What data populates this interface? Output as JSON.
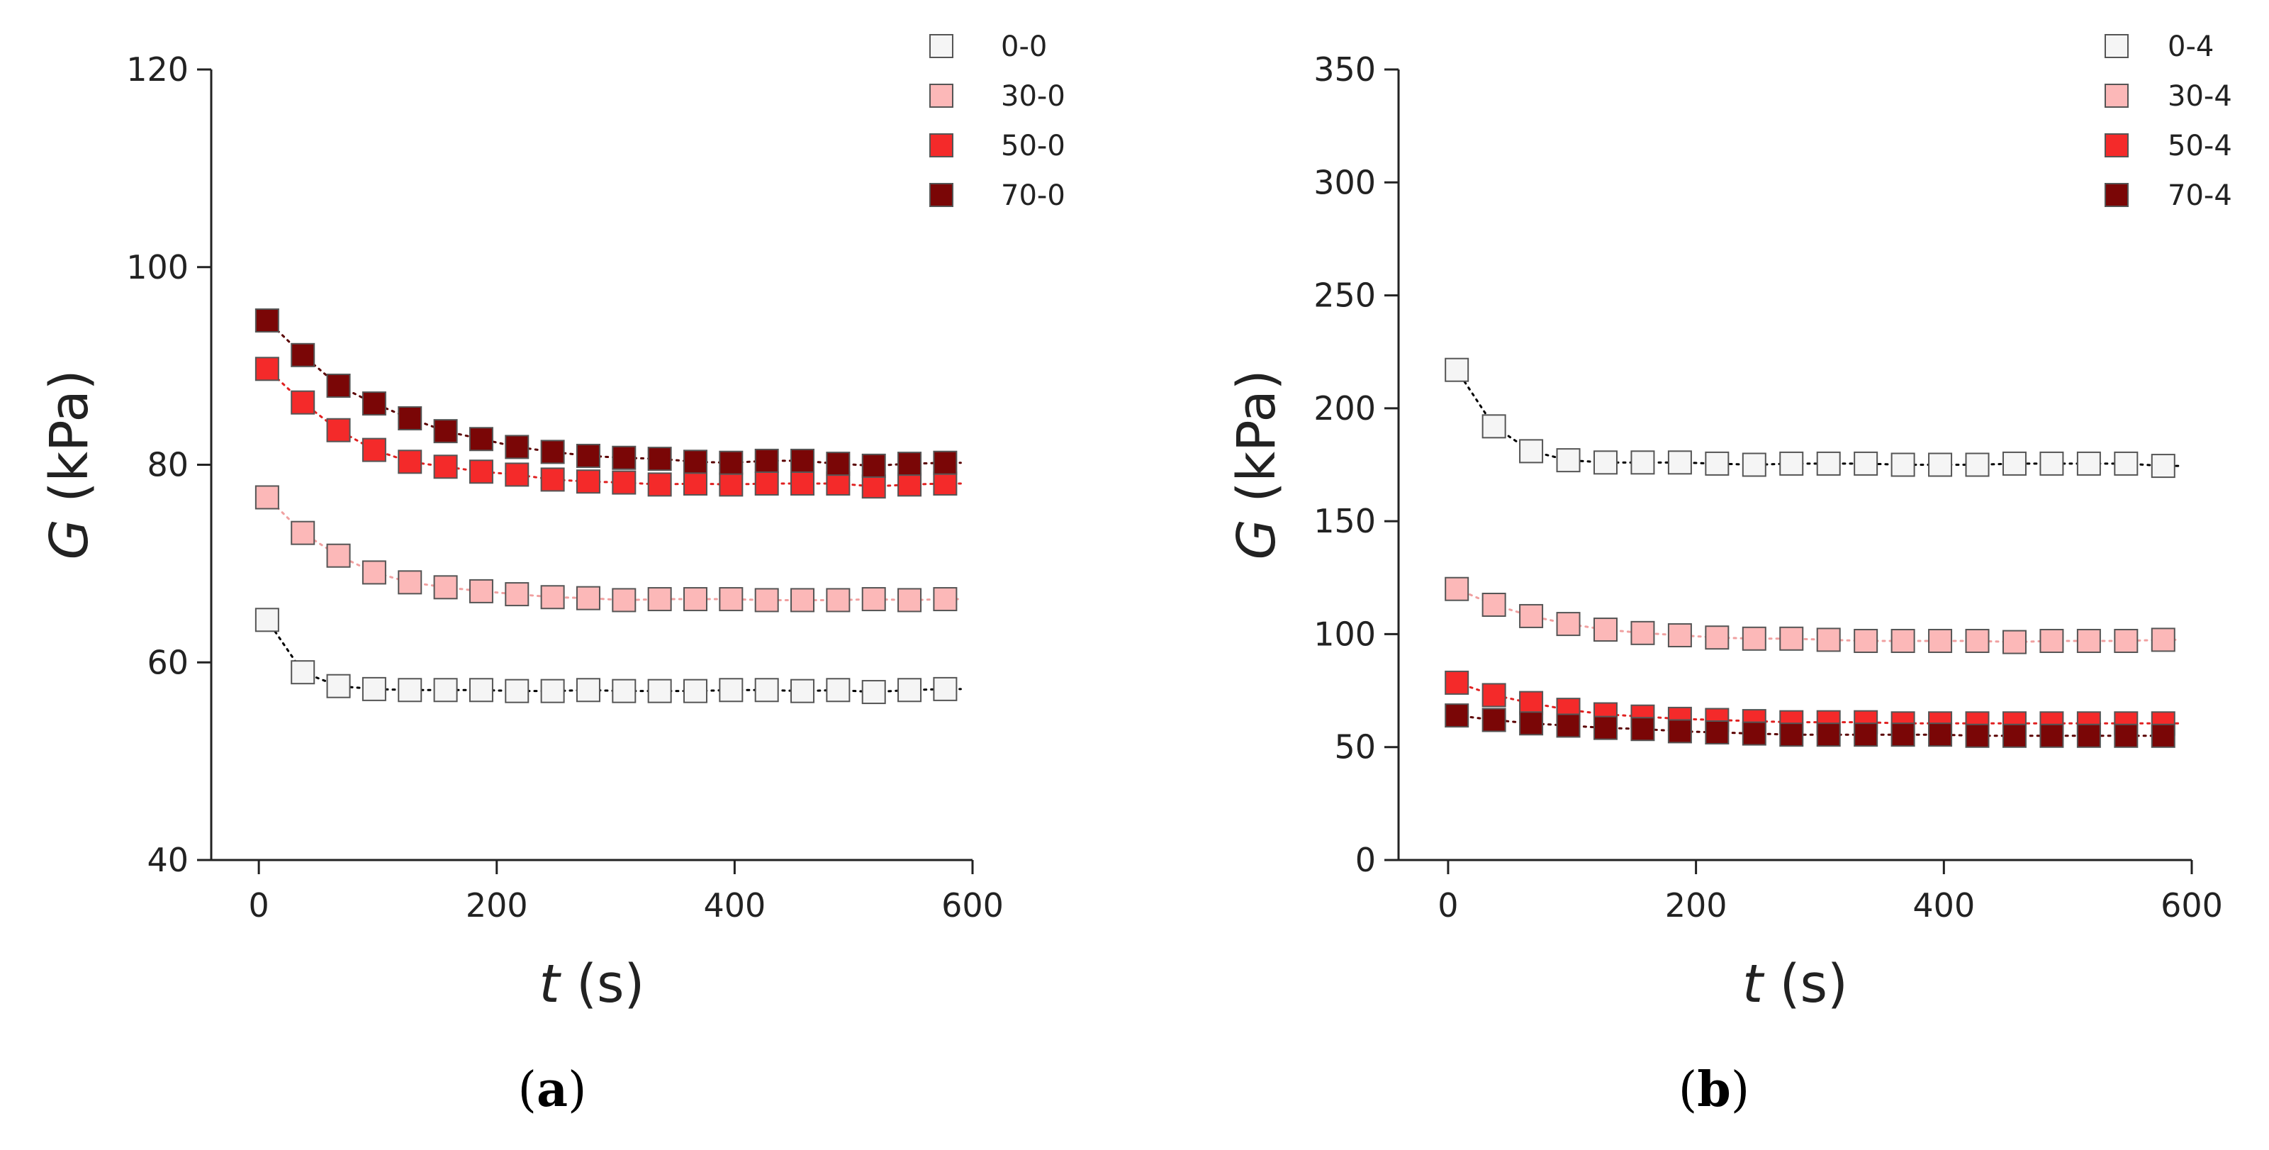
{
  "figure": {
    "panels": [
      {
        "label_open": "(",
        "label": "a",
        "label_close": ")"
      },
      {
        "label_open": "(",
        "label": "b",
        "label_close": ")"
      }
    ]
  },
  "chart_data": [
    {
      "type": "scatter",
      "title": "",
      "xlabel_var": "t",
      "xlabel_unit": " (s)",
      "ylabel_var": "G",
      "ylabel_unit": " (kPa)",
      "xlim": [
        -40,
        600
      ],
      "ylim": [
        40,
        120
      ],
      "xticks": [
        0,
        200,
        400,
        600
      ],
      "yticks": [
        40,
        60,
        80,
        100,
        120
      ],
      "legend_position": "top-right",
      "x": [
        7,
        37,
        67,
        97,
        127,
        157,
        187,
        217,
        247,
        277,
        307,
        337,
        367,
        397,
        427,
        457,
        487,
        517,
        547,
        577
      ],
      "series": [
        {
          "name": "0-0",
          "fill": "#f5f5f5",
          "line": "#000000",
          "values": [
            64.3,
            59.0,
            57.6,
            57.3,
            57.2,
            57.2,
            57.2,
            57.1,
            57.1,
            57.2,
            57.1,
            57.1,
            57.1,
            57.2,
            57.2,
            57.1,
            57.2,
            57.0,
            57.2,
            57.3
          ]
        },
        {
          "name": "30-0",
          "fill": "#fcb8b8",
          "line": "#f0a0a0",
          "values": [
            76.7,
            73.1,
            70.8,
            69.1,
            68.1,
            67.6,
            67.2,
            66.9,
            66.6,
            66.5,
            66.3,
            66.4,
            66.4,
            66.4,
            66.3,
            66.3,
            66.3,
            66.4,
            66.3,
            66.4
          ]
        },
        {
          "name": "50-0",
          "fill": "#f42a2a",
          "line": "#e02020",
          "values": [
            89.7,
            86.3,
            83.5,
            81.5,
            80.3,
            79.8,
            79.3,
            79.0,
            78.5,
            78.3,
            78.2,
            78.0,
            78.1,
            78.0,
            78.1,
            78.1,
            78.1,
            77.8,
            78.0,
            78.1
          ]
        },
        {
          "name": "70-0",
          "fill": "#7a0606",
          "line": "#5a0000",
          "values": [
            94.6,
            91.1,
            88.0,
            86.2,
            84.7,
            83.4,
            82.6,
            81.8,
            81.3,
            80.9,
            80.7,
            80.6,
            80.3,
            80.2,
            80.4,
            80.4,
            80.1,
            79.9,
            80.1,
            80.2
          ]
        }
      ]
    },
    {
      "type": "scatter",
      "title": "",
      "xlabel_var": "t",
      "xlabel_unit": " (s)",
      "ylabel_var": "G",
      "ylabel_unit": " (kPa)",
      "xlim": [
        -40,
        600
      ],
      "ylim": [
        0,
        350
      ],
      "xticks": [
        0,
        200,
        400,
        600
      ],
      "yticks": [
        0,
        50,
        100,
        150,
        200,
        250,
        300,
        350
      ],
      "legend_position": "top-right",
      "x": [
        7,
        37,
        67,
        97,
        127,
        157,
        187,
        217,
        247,
        277,
        307,
        337,
        367,
        397,
        427,
        457,
        487,
        517,
        547,
        577
      ],
      "series": [
        {
          "name": "0-4",
          "fill": "#f5f5f5",
          "line": "#000000",
          "values": [
            217.0,
            192.0,
            181.0,
            177.0,
            176.0,
            176.0,
            176.0,
            175.5,
            175.0,
            175.5,
            175.5,
            175.5,
            175.0,
            175.0,
            175.0,
            175.5,
            175.5,
            175.5,
            175.5,
            174.5
          ]
        },
        {
          "name": "30-4",
          "fill": "#fcb8b8",
          "line": "#f0a0a0",
          "values": [
            120.0,
            113.0,
            108.0,
            104.5,
            102.0,
            100.5,
            99.5,
            98.5,
            98.0,
            98.0,
            97.5,
            97.0,
            97.0,
            97.0,
            97.0,
            96.5,
            97.0,
            97.0,
            97.0,
            97.5
          ]
        },
        {
          "name": "50-4",
          "fill": "#f42a2a",
          "line": "#e02020",
          "values": [
            78.5,
            73.0,
            69.5,
            66.5,
            64.5,
            63.5,
            62.5,
            62.0,
            61.5,
            61.0,
            61.0,
            61.0,
            60.5,
            60.5,
            60.5,
            60.5,
            60.5,
            60.5,
            60.5,
            60.5
          ]
        },
        {
          "name": "70-4",
          "fill": "#7a0606",
          "line": "#5a0000",
          "values": [
            64.0,
            62.0,
            60.5,
            59.5,
            58.5,
            58.0,
            57.0,
            56.5,
            56.0,
            55.5,
            55.5,
            55.5,
            55.5,
            55.5,
            55.0,
            55.0,
            55.0,
            55.0,
            55.0,
            55.0
          ]
        }
      ]
    }
  ]
}
